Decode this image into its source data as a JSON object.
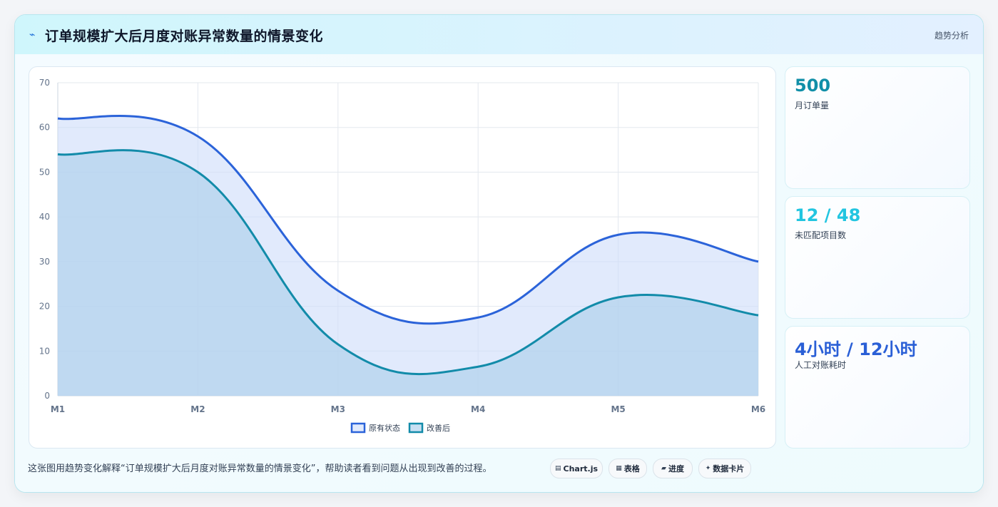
{
  "header": {
    "logo_icon": "⌁",
    "title": "订单规模扩大后月度对账异常数量的情景变化",
    "tag": "趋势分析"
  },
  "chart_data": {
    "type": "area",
    "categories": [
      "M1",
      "M2",
      "M3",
      "M4",
      "M5",
      "M6"
    ],
    "yticks": [
      0,
      10,
      20,
      30,
      40,
      50,
      60,
      70
    ],
    "ylim": [
      0,
      70
    ],
    "series": [
      {
        "name": "原有状态",
        "values": [
          62,
          58,
          23.5,
          17.5,
          36,
          30
        ],
        "color": "#2b63d9",
        "fill": "rgba(205,220,250,0.6)"
      },
      {
        "name": "改善后",
        "values": [
          54,
          50,
          11.5,
          6.5,
          22,
          18
        ],
        "color": "#128ba9",
        "fill": "rgba(176,210,236,0.7)"
      }
    ],
    "grid": true,
    "legend": "bottom"
  },
  "stats": [
    {
      "value": "500",
      "label": "月订单量",
      "color": "#118fa8"
    },
    {
      "value": "12 / 48",
      "label": "未匹配项目数",
      "color": "#22c5e0"
    },
    {
      "value": "4小时 / 12小时",
      "label": "人工对账耗时",
      "color": "#2a5fd6"
    }
  ],
  "footer": {
    "text": "这张图用趋势变化解释“订单规模扩大后月度对账异常数量的情景变化”，帮助读者看到问题从出现到改善的过程。",
    "chips": [
      {
        "icon": "▤",
        "label": "Chart.js"
      },
      {
        "icon": "▦",
        "label": "表格"
      },
      {
        "icon": "▰",
        "label": "进度"
      },
      {
        "icon": "✦",
        "label": "数据卡片"
      }
    ]
  }
}
